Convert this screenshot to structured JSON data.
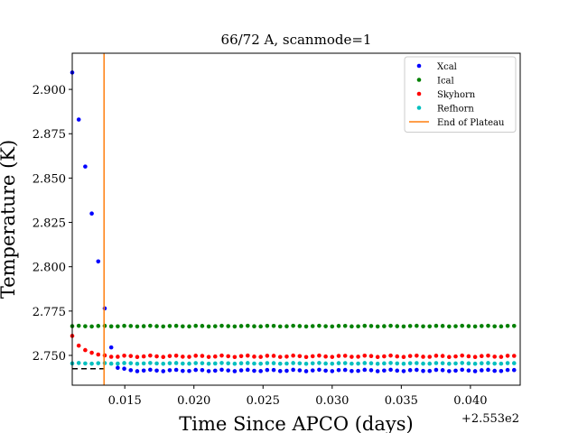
{
  "chart_data": {
    "type": "scatter",
    "title": "66/72 A, scanmode=1",
    "xlabel": "Time Since APCO (days)",
    "ylabel": "Temperature (K)",
    "x_offset_text": "+2.553e2",
    "xlim": [
      0.0112,
      0.0436
    ],
    "ylim": [
      2.7332,
      2.9204
    ],
    "x_ticks": [
      0.015,
      0.02,
      0.025,
      0.03,
      0.035,
      0.04
    ],
    "x_tick_labels": [
      "0.015",
      "0.020",
      "0.025",
      "0.030",
      "0.035",
      "0.040"
    ],
    "y_ticks": [
      2.75,
      2.775,
      2.8,
      2.825,
      2.85,
      2.875,
      2.9
    ],
    "y_tick_labels": [
      "2.750",
      "2.775",
      "2.800",
      "2.825",
      "2.850",
      "2.875",
      "2.900"
    ],
    "x_sampling": {
      "start": 0.0112,
      "step": 0.00047,
      "count": 69
    },
    "series": [
      {
        "name": "Xcal",
        "color": "#0000ff",
        "head": [
          2.9095,
          2.883,
          2.8565,
          2.83,
          2.803,
          2.7765,
          2.7545,
          2.743,
          2.7425
        ],
        "plateau": 2.7415,
        "wiggle": 0.0004
      },
      {
        "name": "Ical",
        "color": "#008000",
        "head": [],
        "plateau": 2.7665,
        "wiggle": 0.0002
      },
      {
        "name": "Skyhorn",
        "color": "#ff0000",
        "head": [
          2.761,
          2.7555,
          2.753,
          2.7515,
          2.7505,
          2.75
        ],
        "plateau": 2.7495,
        "wiggle": 0.0004
      },
      {
        "name": "Refhorn",
        "color": "#00bfbf",
        "head": [],
        "plateau": 2.7455,
        "wiggle": 0.0002
      }
    ],
    "vlines": [
      {
        "name": "End of Plateau",
        "x": 0.0135,
        "color": "#ff7f0e"
      }
    ],
    "hlines": [
      {
        "y": 2.7425,
        "color": "#000000",
        "style": "dashed",
        "x_end": 0.0135
      }
    ],
    "legend_placement": "top-right",
    "grid": false
  }
}
